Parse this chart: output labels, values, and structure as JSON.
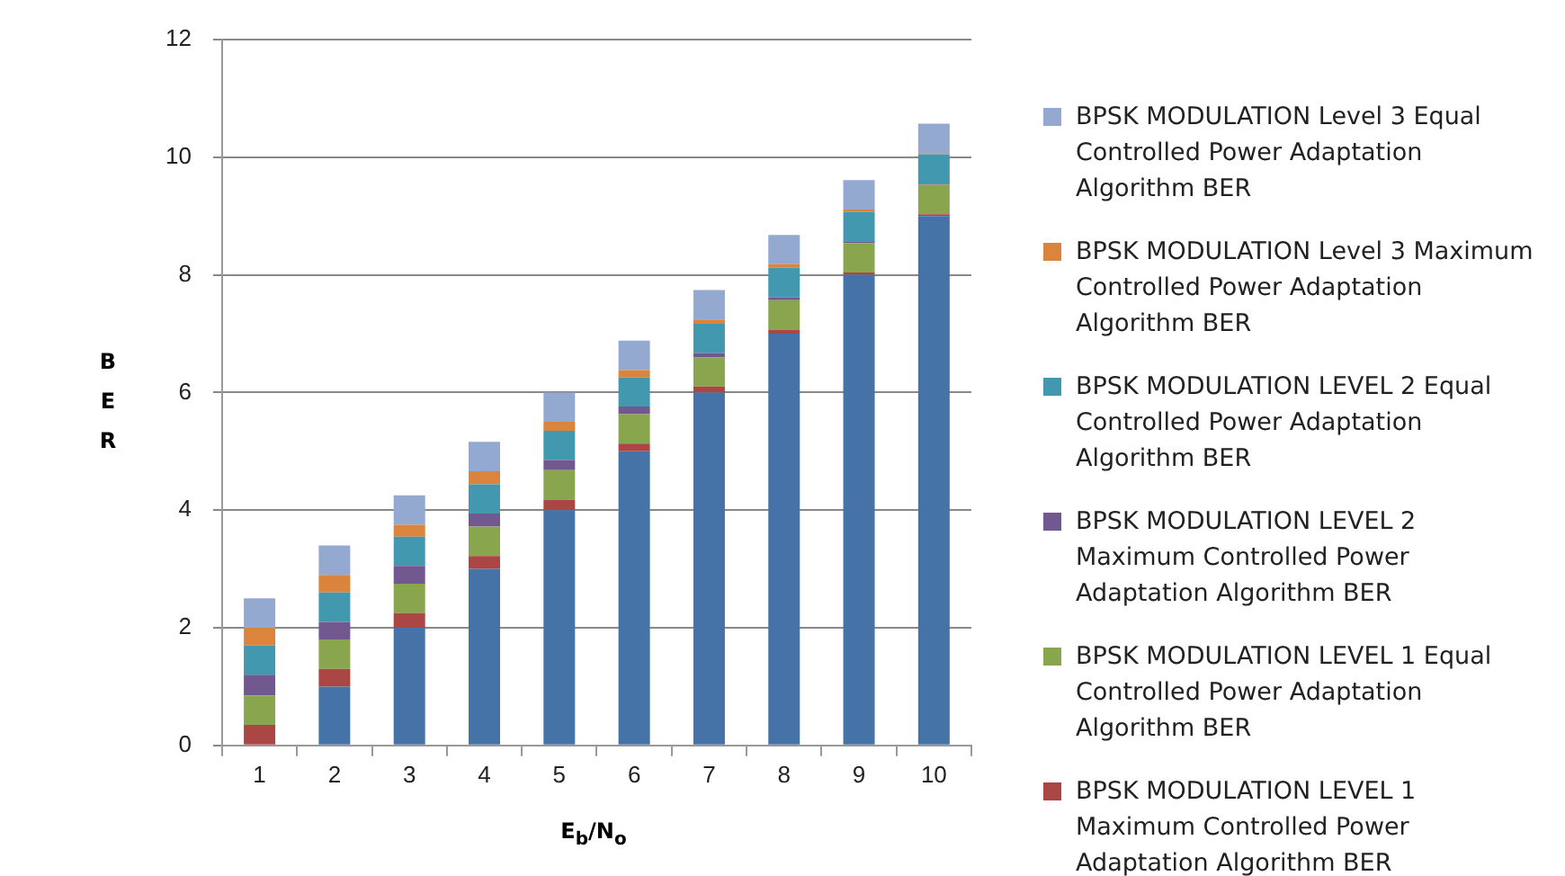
{
  "chart_data": {
    "type": "bar",
    "stacked": true,
    "xlabel": "E$_{b}$/N$_{o}$",
    "ylabel": "BER",
    "categories": [
      "1",
      "2",
      "3",
      "4",
      "5",
      "6",
      "7",
      "8",
      "9",
      "10"
    ],
    "ylim": [
      0,
      12
    ],
    "yticks": [
      0,
      2,
      4,
      6,
      8,
      10,
      12
    ],
    "grid": "y",
    "legend": "right",
    "series": [
      {
        "color": "#4572a7",
        "values": [
          0,
          1,
          2,
          3,
          4,
          5,
          6,
          7,
          8,
          9
        ]
      },
      {
        "name": "BPSK   MODULATION LEVEL 1 Maximum Controlled Power Adaptation Algorithm BER",
        "color": "#aa4643",
        "values": [
          0.35,
          0.3,
          0.25,
          0.22,
          0.18,
          0.13,
          0.1,
          0.07,
          0.04,
          0.03
        ]
      },
      {
        "name": "BPSK   MODULATION LEVEL 1 Equal  Controlled Power Adaptation Algorithm BER",
        "color": "#89a54e",
        "values": [
          0.5,
          0.5,
          0.5,
          0.5,
          0.5,
          0.5,
          0.5,
          0.5,
          0.5,
          0.5
        ]
      },
      {
        "name": "BPSK   MODULATION LEVEL 2 Maximum Controlled Power Adaptation Algorithm BER",
        "color": "#71588f",
        "values": [
          0.35,
          0.3,
          0.3,
          0.22,
          0.17,
          0.13,
          0.07,
          0.05,
          0.03,
          0.02
        ]
      },
      {
        "name": "BPSK   MODULATION LEVEL 2 Equal  Controlled Power Adaptation Algorithm BER",
        "color": "#4198af",
        "values": [
          0.5,
          0.5,
          0.5,
          0.5,
          0.5,
          0.5,
          0.5,
          0.5,
          0.5,
          0.5
        ]
      },
      {
        "name": "BPSK   MODULATION Level 3 Maximum Controlled Power Adaptation Algorithm BER",
        "color": "#db843d",
        "values": [
          0.3,
          0.3,
          0.2,
          0.22,
          0.15,
          0.12,
          0.07,
          0.06,
          0.04,
          0.02
        ]
      },
      {
        "name": "BPSK   MODULATION Level 3 Equal  Controlled Power Adaptation Algorithm BER",
        "color": "#93a9cf",
        "values": [
          0.5,
          0.5,
          0.5,
          0.5,
          0.5,
          0.5,
          0.5,
          0.5,
          0.5,
          0.5
        ]
      }
    ]
  }
}
